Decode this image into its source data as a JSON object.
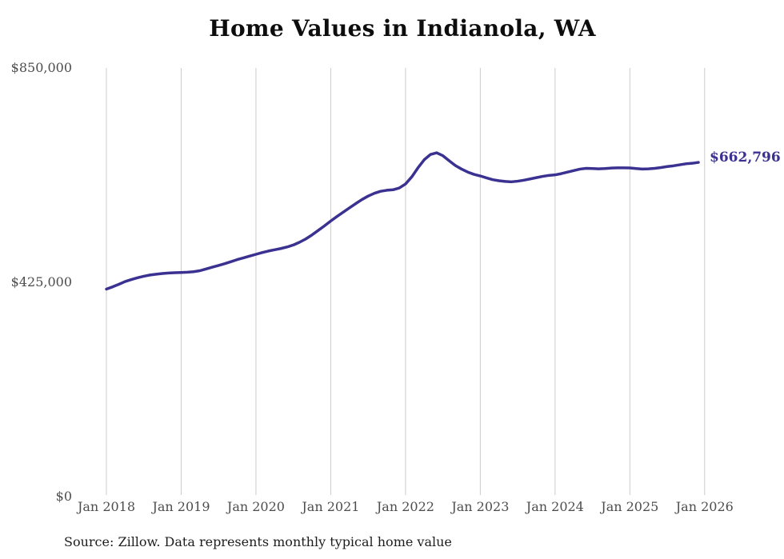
{
  "title": "Home Values in Indianola, WA",
  "source_note": "Source: Zillow. Data represents monthly typical home value",
  "colors": {
    "line": "#3a3191",
    "grid": "#cbcbcb",
    "axis_text": "#4d4d4d",
    "title_text": "#0d0d0d",
    "source_text": "#1d1d1d",
    "background": "#ffffff"
  },
  "chart_data": {
    "type": "line",
    "title": "Home Values in Indianola, WA",
    "frequency": "monthly",
    "x_start": "Jan 2018",
    "x_end": "Jan 2026",
    "x_tick_labels": [
      "Jan 2018",
      "Jan 2019",
      "Jan 2020",
      "Jan 2021",
      "Jan 2022",
      "Jan 2023",
      "Jan 2024",
      "Jan 2025",
      "Jan 2026"
    ],
    "x_tick_month_indices": [
      0,
      12,
      24,
      36,
      48,
      60,
      72,
      84,
      96
    ],
    "y_ticks": [
      {
        "label": "$0",
        "value": 0
      },
      {
        "label": "$425,000",
        "value": 425000
      },
      {
        "label": "$850,000",
        "value": 850000
      }
    ],
    "ylim": [
      0,
      850000
    ],
    "grid": "vertical",
    "legend": "none",
    "last_value_label": "$662,796",
    "values": [
      411500,
      416000,
      421000,
      426500,
      430500,
      434000,
      437000,
      439500,
      441000,
      442500,
      443500,
      444000,
      444500,
      445000,
      446000,
      448000,
      451500,
      455000,
      458500,
      462000,
      466000,
      470000,
      473500,
      477000,
      480500,
      484000,
      487000,
      489500,
      492000,
      495000,
      499000,
      504500,
      511000,
      519000,
      528000,
      537000,
      546500,
      555500,
      564000,
      572500,
      581000,
      589000,
      596000,
      601500,
      605500,
      607500,
      608500,
      612000,
      620000,
      634000,
      652000,
      668000,
      678500,
      681800,
      676000,
      666000,
      656500,
      649500,
      643500,
      639000,
      635900,
      632000,
      628500,
      626400,
      625000,
      624300,
      625500,
      627500,
      630000,
      632500,
      635000,
      637000,
      638000,
      640500,
      643500,
      646500,
      649500,
      651000,
      650500,
      650000,
      650500,
      651500,
      652000,
      652000,
      651800,
      650500,
      649500,
      650000,
      651000,
      652500,
      654500,
      656000,
      658000,
      660000,
      661000,
      662796
    ]
  }
}
